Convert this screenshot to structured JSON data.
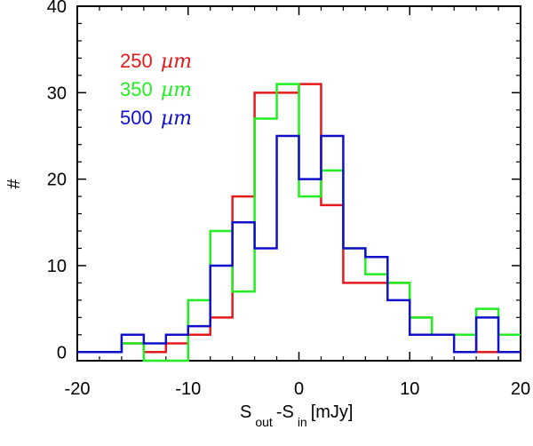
{
  "chart_data": {
    "type": "histogram-step",
    "xlabel": {
      "main": "S",
      "sub1": "out",
      "mid": "-S",
      "sub2": "in",
      "tail": " [mJy]"
    },
    "ylabel": "#",
    "xlim": [
      -20,
      20
    ],
    "ylim": [
      -1,
      40
    ],
    "xticks": [
      -20,
      -10,
      0,
      10,
      20
    ],
    "yticks": [
      0,
      10,
      20,
      30,
      40
    ],
    "tick_labels": {
      "x": [
        "-20",
        "-10",
        "0",
        "10",
        "20"
      ],
      "y": [
        "0",
        "10",
        "20",
        "30",
        "40"
      ]
    },
    "bin_edges": [
      -20,
      -18,
      -16,
      -14,
      -12,
      -10,
      -8,
      -6,
      -4,
      -2,
      0,
      2,
      4,
      6,
      8,
      10,
      12,
      14,
      16,
      18,
      20
    ],
    "series": [
      {
        "name": "250 µm",
        "number": "250",
        "unit": "µm",
        "color": "#e41a1c",
        "values": [
          0,
          0,
          1,
          0,
          1,
          2,
          4,
          18,
          30,
          30,
          31,
          17,
          8,
          8,
          8,
          4,
          2,
          2,
          0,
          0
        ]
      },
      {
        "name": "350 µm",
        "number": "350",
        "unit": "µm",
        "color": "#22ee22",
        "values": [
          0,
          0,
          1,
          -1,
          -1,
          6,
          14,
          7,
          27,
          31,
          18,
          21,
          12,
          9,
          8,
          4,
          2,
          2,
          5,
          2
        ]
      },
      {
        "name": "500 µm",
        "number": "500",
        "unit": "µm",
        "color": "#1010cc",
        "values": [
          0,
          0,
          2,
          1,
          2,
          3,
          10,
          15,
          12,
          25,
          20,
          25,
          12,
          11,
          6,
          2,
          2,
          0,
          4,
          0
        ]
      }
    ]
  }
}
